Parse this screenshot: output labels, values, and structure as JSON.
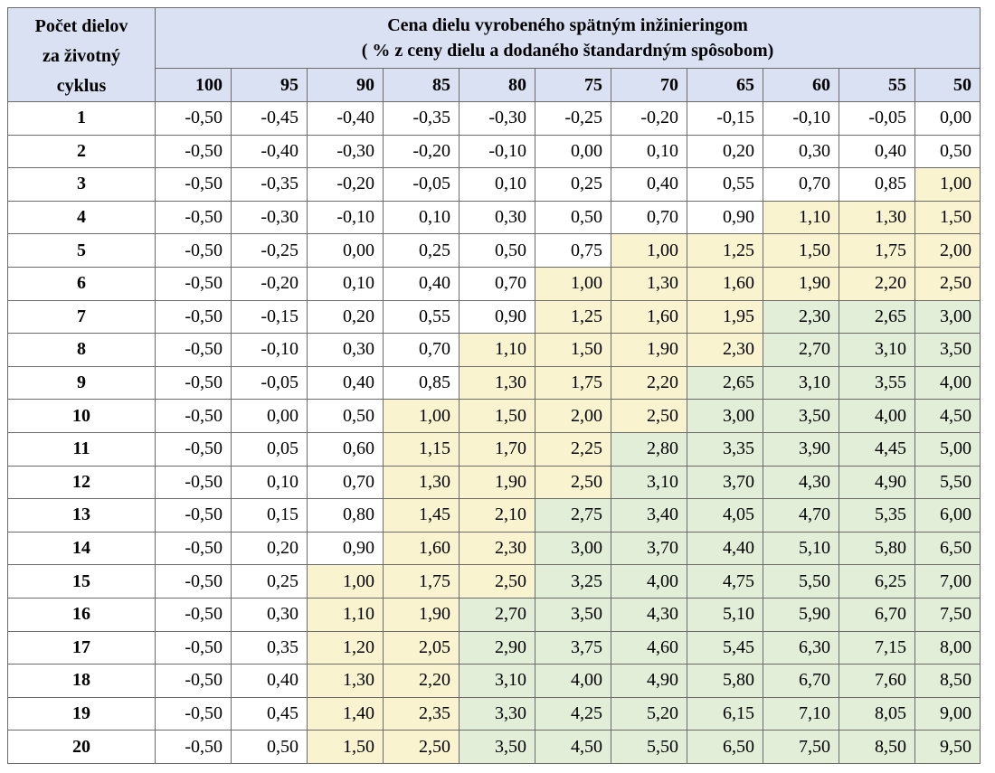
{
  "header": {
    "row_label": [
      "Počet dielov",
      "za životný",
      "cyklus"
    ],
    "title_line1": "Cena dielu vyrobeného spätným inžinieringom",
    "title_line2": "( % z ceny dielu a dodaného štandardným spôsobom)",
    "columns": [
      "100",
      "95",
      "90",
      "85",
      "80",
      "75",
      "70",
      "65",
      "60",
      "55",
      "50"
    ]
  },
  "colors": {
    "header_bg": "#d9e1f2",
    "yellow": "#faf3cf",
    "green": "#e2eed8"
  },
  "rows": [
    {
      "n": "1",
      "v": [
        "-0,50",
        "-0,45",
        "-0,40",
        "-0,35",
        "-0,30",
        "-0,25",
        "-0,20",
        "-0,15",
        "-0,10",
        "-0,05",
        "0,00"
      ],
      "c": [
        0,
        0,
        0,
        0,
        0,
        0,
        0,
        0,
        0,
        0,
        0
      ]
    },
    {
      "n": "2",
      "v": [
        "-0,50",
        "-0,40",
        "-0,30",
        "-0,20",
        "-0,10",
        "0,00",
        "0,10",
        "0,20",
        "0,30",
        "0,40",
        "0,50"
      ],
      "c": [
        0,
        0,
        0,
        0,
        0,
        0,
        0,
        0,
        0,
        0,
        0
      ]
    },
    {
      "n": "3",
      "v": [
        "-0,50",
        "-0,35",
        "-0,20",
        "-0,05",
        "0,10",
        "0,25",
        "0,40",
        "0,55",
        "0,70",
        "0,85",
        "1,00"
      ],
      "c": [
        0,
        0,
        0,
        0,
        0,
        0,
        0,
        0,
        0,
        0,
        1
      ]
    },
    {
      "n": "4",
      "v": [
        "-0,50",
        "-0,30",
        "-0,10",
        "0,10",
        "0,30",
        "0,50",
        "0,70",
        "0,90",
        "1,10",
        "1,30",
        "1,50"
      ],
      "c": [
        0,
        0,
        0,
        0,
        0,
        0,
        0,
        0,
        1,
        1,
        1
      ]
    },
    {
      "n": "5",
      "v": [
        "-0,50",
        "-0,25",
        "0,00",
        "0,25",
        "0,50",
        "0,75",
        "1,00",
        "1,25",
        "1,50",
        "1,75",
        "2,00"
      ],
      "c": [
        0,
        0,
        0,
        0,
        0,
        0,
        1,
        1,
        1,
        1,
        1
      ]
    },
    {
      "n": "6",
      "v": [
        "-0,50",
        "-0,20",
        "0,10",
        "0,40",
        "0,70",
        "1,00",
        "1,30",
        "1,60",
        "1,90",
        "2,20",
        "2,50"
      ],
      "c": [
        0,
        0,
        0,
        0,
        0,
        1,
        1,
        1,
        1,
        1,
        1
      ]
    },
    {
      "n": "7",
      "v": [
        "-0,50",
        "-0,15",
        "0,20",
        "0,55",
        "0,90",
        "1,25",
        "1,60",
        "1,95",
        "2,30",
        "2,65",
        "3,00"
      ],
      "c": [
        0,
        0,
        0,
        0,
        0,
        1,
        1,
        1,
        2,
        2,
        2
      ]
    },
    {
      "n": "8",
      "v": [
        "-0,50",
        "-0,10",
        "0,30",
        "0,70",
        "1,10",
        "1,50",
        "1,90",
        "2,30",
        "2,70",
        "3,10",
        "3,50"
      ],
      "c": [
        0,
        0,
        0,
        0,
        1,
        1,
        1,
        1,
        2,
        2,
        2
      ]
    },
    {
      "n": "9",
      "v": [
        "-0,50",
        "-0,05",
        "0,40",
        "0,85",
        "1,30",
        "1,75",
        "2,20",
        "2,65",
        "3,10",
        "3,55",
        "4,00"
      ],
      "c": [
        0,
        0,
        0,
        0,
        1,
        1,
        1,
        2,
        2,
        2,
        2
      ]
    },
    {
      "n": "10",
      "v": [
        "-0,50",
        "0,00",
        "0,50",
        "1,00",
        "1,50",
        "2,00",
        "2,50",
        "3,00",
        "3,50",
        "4,00",
        "4,50"
      ],
      "c": [
        0,
        0,
        0,
        1,
        1,
        1,
        1,
        2,
        2,
        2,
        2
      ]
    },
    {
      "n": "11",
      "v": [
        "-0,50",
        "0,05",
        "0,60",
        "1,15",
        "1,70",
        "2,25",
        "2,80",
        "3,35",
        "3,90",
        "4,45",
        "5,00"
      ],
      "c": [
        0,
        0,
        0,
        1,
        1,
        1,
        2,
        2,
        2,
        2,
        2
      ]
    },
    {
      "n": "12",
      "v": [
        "-0,50",
        "0,10",
        "0,70",
        "1,30",
        "1,90",
        "2,50",
        "3,10",
        "3,70",
        "4,30",
        "4,90",
        "5,50"
      ],
      "c": [
        0,
        0,
        0,
        1,
        1,
        1,
        2,
        2,
        2,
        2,
        2
      ]
    },
    {
      "n": "13",
      "v": [
        "-0,50",
        "0,15",
        "0,80",
        "1,45",
        "2,10",
        "2,75",
        "3,40",
        "4,05",
        "4,70",
        "5,35",
        "6,00"
      ],
      "c": [
        0,
        0,
        0,
        1,
        1,
        2,
        2,
        2,
        2,
        2,
        2
      ]
    },
    {
      "n": "14",
      "v": [
        "-0,50",
        "0,20",
        "0,90",
        "1,60",
        "2,30",
        "3,00",
        "3,70",
        "4,40",
        "5,10",
        "5,80",
        "6,50"
      ],
      "c": [
        0,
        0,
        0,
        1,
        1,
        2,
        2,
        2,
        2,
        2,
        2
      ]
    },
    {
      "n": "15",
      "v": [
        "-0,50",
        "0,25",
        "1,00",
        "1,75",
        "2,50",
        "3,25",
        "4,00",
        "4,75",
        "5,50",
        "6,25",
        "7,00"
      ],
      "c": [
        0,
        0,
        1,
        1,
        1,
        2,
        2,
        2,
        2,
        2,
        2
      ]
    },
    {
      "n": "16",
      "v": [
        "-0,50",
        "0,30",
        "1,10",
        "1,90",
        "2,70",
        "3,50",
        "4,30",
        "5,10",
        "5,90",
        "6,70",
        "7,50"
      ],
      "c": [
        0,
        0,
        1,
        1,
        2,
        2,
        2,
        2,
        2,
        2,
        2
      ]
    },
    {
      "n": "17",
      "v": [
        "-0,50",
        "0,35",
        "1,20",
        "2,05",
        "2,90",
        "3,75",
        "4,60",
        "5,45",
        "6,30",
        "7,15",
        "8,00"
      ],
      "c": [
        0,
        0,
        1,
        1,
        2,
        2,
        2,
        2,
        2,
        2,
        2
      ]
    },
    {
      "n": "18",
      "v": [
        "-0,50",
        "0,40",
        "1,30",
        "2,20",
        "3,10",
        "4,00",
        "4,90",
        "5,80",
        "6,70",
        "7,60",
        "8,50"
      ],
      "c": [
        0,
        0,
        1,
        1,
        2,
        2,
        2,
        2,
        2,
        2,
        2
      ]
    },
    {
      "n": "19",
      "v": [
        "-0,50",
        "0,45",
        "1,40",
        "2,35",
        "3,30",
        "4,25",
        "5,20",
        "6,15",
        "7,10",
        "8,05",
        "9,00"
      ],
      "c": [
        0,
        0,
        1,
        1,
        2,
        2,
        2,
        2,
        2,
        2,
        2
      ]
    },
    {
      "n": "20",
      "v": [
        "-0,50",
        "0,50",
        "1,50",
        "2,50",
        "3,50",
        "4,50",
        "5,50",
        "6,50",
        "7,50",
        "8,50",
        "9,50"
      ],
      "c": [
        0,
        0,
        1,
        1,
        2,
        2,
        2,
        2,
        2,
        2,
        2
      ]
    }
  ]
}
